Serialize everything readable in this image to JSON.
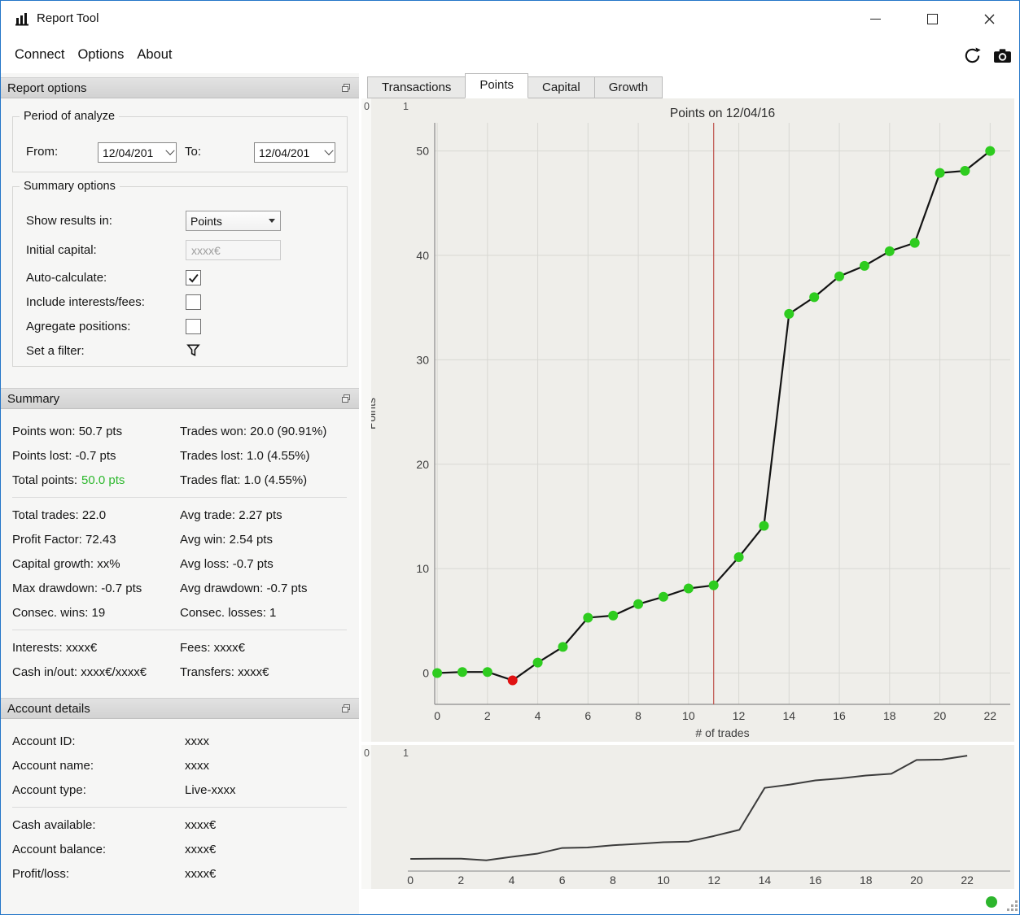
{
  "window": {
    "title": "Report Tool"
  },
  "menu": {
    "items": [
      "Connect",
      "Options",
      "About"
    ]
  },
  "report_options": {
    "title": "Report options",
    "period_title": "Period of analyze",
    "from_label": "From:",
    "from_value": "12/04/201",
    "to_label": "To:",
    "to_value": "12/04/201",
    "options_title": "Summary options",
    "show_results_label": "Show results in:",
    "show_results_value": "Points",
    "initial_capital_label": "Initial capital:",
    "initial_capital_placeholder": "xxxx€",
    "auto_calculate_label": "Auto-calculate:",
    "auto_calculate_checked": true,
    "include_fees_label": "Include interests/fees:",
    "include_fees_checked": false,
    "aggregate_label": "Agregate positions:",
    "aggregate_checked": false,
    "filter_label": "Set a filter:"
  },
  "summary": {
    "title": "Summary",
    "block1_left": [
      "Points won: 50.7 pts",
      "Points lost: -0.7 pts"
    ],
    "total_points_label": "Total points:",
    "total_points_value": "50.0 pts",
    "total_points_color": "#2eb82e",
    "block1_right": [
      "Trades won: 20.0 (90.91%)",
      "Trades lost: 1.0 (4.55%)",
      "Trades flat: 1.0 (4.55%)"
    ],
    "block2_left": [
      "Total trades: 22.0",
      "Profit Factor: 72.43",
      "Capital growth: xx%",
      "Max drawdown: -0.7 pts",
      "Consec. wins: 19"
    ],
    "block2_right": [
      "Avg trade: 2.27 pts",
      "Avg win: 2.54 pts",
      "Avg loss: -0.7 pts",
      "Avg drawdown: -0.7 pts",
      "Consec. losses: 1"
    ],
    "block3_left": [
      "Interests: xxxx€",
      "Cash in/out: xxxx€/xxxx€"
    ],
    "block3_right": [
      "Fees: xxxx€",
      "Transfers: xxxx€"
    ]
  },
  "account": {
    "title": "Account details",
    "block1": [
      {
        "label": "Account ID:",
        "value": "xxxx"
      },
      {
        "label": "Account name:",
        "value": "xxxx"
      },
      {
        "label": "Account type:",
        "value": "Live-xxxx"
      }
    ],
    "block2": [
      {
        "label": "Cash available:",
        "value": "xxxx€"
      },
      {
        "label": "Account balance:",
        "value": "xxxx€"
      },
      {
        "label": "Profit/loss:",
        "value": "xxxx€"
      }
    ]
  },
  "tabs": {
    "items": [
      "Transactions",
      "Points",
      "Capital",
      "Growth"
    ],
    "active_index": 1
  },
  "chart_overlay": {
    "range_labels": [
      "0",
      "1"
    ]
  },
  "status": {
    "indicator_color": "#2db52d"
  },
  "chart_data": [
    {
      "type": "line",
      "title": "Points on 12/04/16",
      "xlabel": "# of trades",
      "ylabel": "Points",
      "x": [
        0,
        1,
        2,
        3,
        4,
        5,
        6,
        7,
        8,
        9,
        10,
        11,
        12,
        13,
        14,
        15,
        16,
        17,
        18,
        19,
        20,
        21,
        22
      ],
      "y": [
        0,
        0.1,
        0.1,
        -0.7,
        1.0,
        2.5,
        5.3,
        5.5,
        6.6,
        7.3,
        8.1,
        8.4,
        11.1,
        14.1,
        34.4,
        36.0,
        38.0,
        39.0,
        40.4,
        41.2,
        47.9,
        48.1,
        50.0
      ],
      "xticks": [
        0,
        2,
        4,
        6,
        8,
        10,
        12,
        14,
        16,
        18,
        20,
        22
      ],
      "yticks": [
        0,
        10,
        20,
        30,
        40,
        50
      ],
      "xlim": [
        -0.1,
        22.8
      ],
      "ylim": [
        -3.0,
        52.7
      ],
      "grid": true,
      "grid_color": "#d8d8d3",
      "axis_color": "#8c8c8c",
      "line_color": "#141414",
      "marker_color": "#2ecc1f",
      "negative_marker_color": "#e01212",
      "negative_marker_indices": [
        3
      ],
      "cursor_x": 11,
      "cursor_color": "#bf5650",
      "legend": false
    },
    {
      "type": "line",
      "role": "overview-navigator",
      "x": [
        0,
        1,
        2,
        3,
        4,
        5,
        6,
        7,
        8,
        9,
        10,
        11,
        12,
        13,
        14,
        15,
        16,
        17,
        18,
        19,
        20,
        21,
        22
      ],
      "y": [
        0,
        0.1,
        0.1,
        -0.7,
        1.0,
        2.5,
        5.3,
        5.5,
        6.6,
        7.3,
        8.1,
        8.4,
        11.1,
        14.1,
        34.4,
        36.0,
        38.0,
        39.0,
        40.4,
        41.2,
        47.9,
        48.1,
        50.0
      ],
      "xticks": [
        0,
        2,
        4,
        6,
        8,
        10,
        12,
        14,
        16,
        18,
        20,
        22
      ],
      "xlim": [
        -0.1,
        23.7
      ],
      "ylim": [
        -5.9,
        52.0
      ],
      "grid": false,
      "axis_color": "#9a9a9a",
      "line_color": "#3c3c3c",
      "legend": false
    }
  ]
}
